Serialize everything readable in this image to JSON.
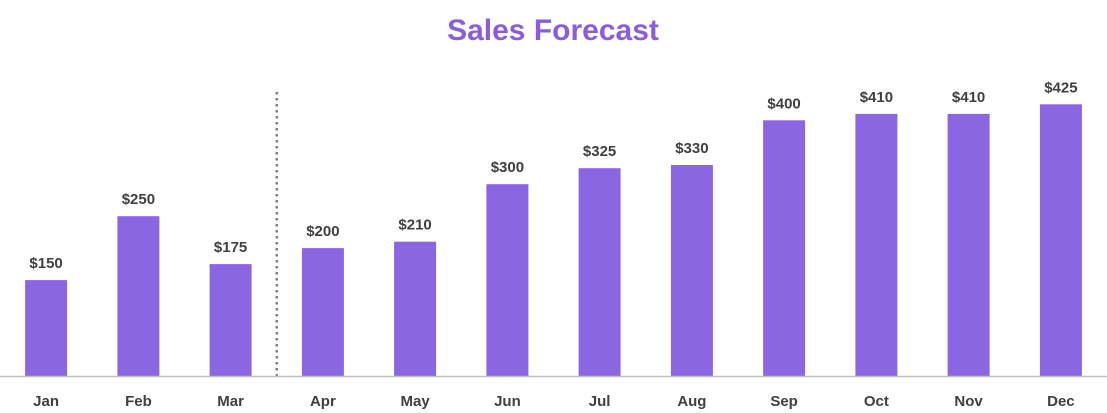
{
  "chart_data": {
    "type": "bar",
    "title": "Sales Forecast",
    "categories": [
      "Jan",
      "Feb",
      "Mar",
      "Apr",
      "May",
      "Jun",
      "Jul",
      "Aug",
      "Sep",
      "Oct",
      "Nov",
      "Dec"
    ],
    "values": [
      150,
      250,
      175,
      200,
      210,
      300,
      325,
      330,
      400,
      410,
      410,
      425
    ],
    "data_labels": [
      "$150",
      "$250",
      "$175",
      "$200",
      "$210",
      "$300",
      "$325",
      "$330",
      "$400",
      "$410",
      "$410",
      "$425"
    ],
    "xlabel": "",
    "ylabel": "",
    "ylim": [
      0,
      500
    ],
    "grid": false,
    "legend": "none",
    "divider_between": [
      "Mar",
      "Apr"
    ],
    "colors": {
      "bar": "#8B66E3",
      "title": "#8B5CE0",
      "labels": "#404040",
      "axis": "#BFBFBF",
      "divider": "#7F7F7F"
    }
  }
}
